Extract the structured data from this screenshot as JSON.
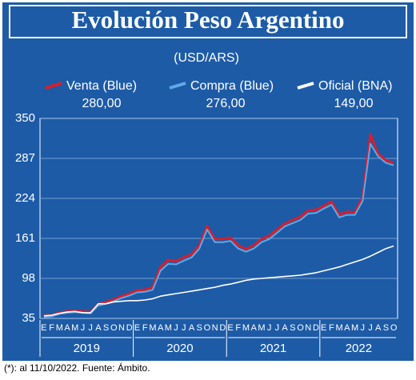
{
  "chart_data": {
    "type": "line",
    "title": "Evolución Peso Argentino",
    "subtitle": "(USD/ARS)",
    "footnote": "(*): al 11/10/2022.  Fuente: Ámbito.",
    "categories": [
      "E",
      "F",
      "M",
      "A",
      "M",
      "J",
      "J",
      "A",
      "S",
      "O",
      "N",
      "D",
      "E",
      "F",
      "M",
      "A",
      "M",
      "J",
      "J",
      "A",
      "S",
      "O",
      "N",
      "D",
      "E",
      "F",
      "M",
      "A",
      "M",
      "J",
      "J",
      "A",
      "S",
      "O",
      "N",
      "D",
      "E",
      "F",
      "M",
      "A",
      "M",
      "J",
      "J",
      "A",
      "S",
      "O"
    ],
    "year_groups": [
      "2019",
      "2020",
      "2021",
      "2022"
    ],
    "ylim": [
      35,
      350
    ],
    "yticks": [
      35,
      98,
      161,
      224,
      287,
      350
    ],
    "grid": true,
    "series": [
      {
        "name": "Oficial (BNA)",
        "color": "#ffffff",
        "values": [
          39,
          40,
          43,
          45,
          46,
          44,
          44,
          58,
          58,
          61,
          62,
          63,
          63,
          64,
          66,
          70,
          72,
          74,
          76,
          78,
          80,
          82,
          84,
          87,
          89,
          92,
          95,
          97,
          98,
          99,
          100,
          101,
          102,
          103,
          105,
          107,
          110,
          113,
          116,
          120,
          124,
          128,
          133,
          139,
          145,
          149
        ],
        "value_labels": [
          null,
          null,
          null,
          null,
          null,
          null,
          null,
          null,
          null,
          null,
          null,
          null,
          null,
          null,
          null,
          null,
          null,
          null,
          null,
          null,
          null,
          null,
          null,
          null,
          null,
          null,
          null,
          null,
          null,
          null,
          null,
          null,
          null,
          null,
          null,
          null,
          null,
          null,
          null,
          null,
          null,
          null,
          null,
          null,
          null,
          "149,00"
        ]
      },
      {
        "name": "Venta (Blue)",
        "color": "#d81e2c",
        "values": [
          39,
          40,
          44,
          46,
          47,
          46,
          45,
          57,
          61,
          65,
          70,
          74,
          79,
          80,
          84,
          116,
          127,
          125,
          131,
          136,
          150,
          180,
          160,
          160,
          162,
          150,
          144,
          150,
          160,
          165,
          175,
          184,
          190,
          195,
          205,
          206,
          212,
          219,
          198,
          203,
          202,
          226,
          325,
          294,
          284,
          280
        ],
        "value_labels": [
          null,
          null,
          null,
          null,
          null,
          null,
          null,
          null,
          null,
          null,
          null,
          null,
          null,
          null,
          null,
          null,
          null,
          null,
          null,
          null,
          null,
          null,
          null,
          null,
          null,
          null,
          null,
          null,
          null,
          null,
          null,
          null,
          null,
          null,
          null,
          null,
          null,
          null,
          null,
          null,
          null,
          null,
          null,
          null,
          null,
          "280,00"
        ]
      },
      {
        "name": "Compra (Blue)",
        "color": "#5ea9e8",
        "values": [
          37,
          38,
          42,
          44,
          45,
          44,
          43,
          55,
          58,
          62,
          67,
          71,
          76,
          77,
          80,
          110,
          121,
          120,
          126,
          131,
          145,
          175,
          155,
          155,
          157,
          145,
          140,
          145,
          155,
          160,
          170,
          180,
          185,
          190,
          200,
          201,
          208,
          214,
          194,
          198,
          198,
          220,
          310,
          290,
          280,
          276
        ],
        "value_labels": [
          null,
          null,
          null,
          null,
          null,
          null,
          null,
          null,
          null,
          null,
          null,
          null,
          null,
          null,
          null,
          null,
          null,
          null,
          null,
          null,
          null,
          null,
          null,
          null,
          null,
          null,
          null,
          null,
          null,
          null,
          null,
          null,
          null,
          null,
          null,
          null,
          null,
          null,
          null,
          null,
          null,
          null,
          null,
          null,
          null,
          "276,00"
        ]
      }
    ]
  }
}
